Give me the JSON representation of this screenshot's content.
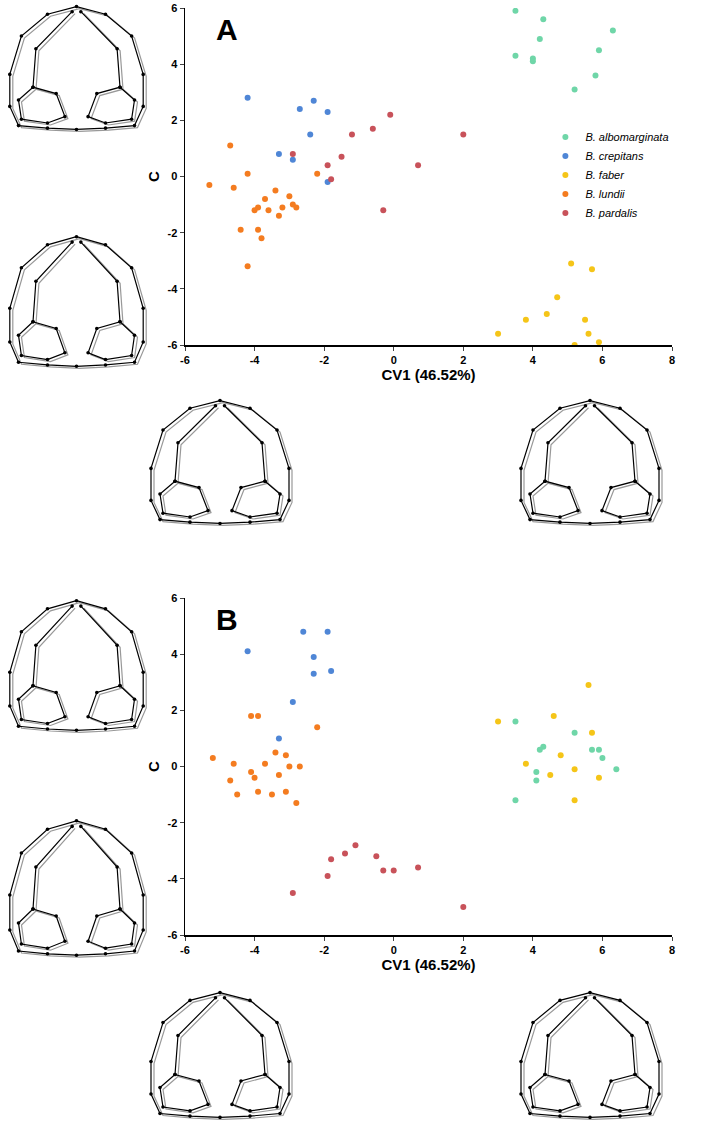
{
  "chart_data": [
    {
      "type": "scatter",
      "panel": "A",
      "x_label": "CV1 (46.52%)",
      "y_label": "C",
      "xlim": [
        -6,
        8
      ],
      "ylim": [
        -6,
        6
      ],
      "xticks": [
        -6,
        -4,
        -2,
        0,
        2,
        4,
        6,
        8
      ],
      "yticks": [
        -6,
        -4,
        -2,
        0,
        2,
        4,
        6
      ],
      "legend": "upper right",
      "series": [
        {
          "name": "B. albomarginata",
          "color": "#6fd6a8",
          "x": [
            3.5,
            4.3,
            6.3,
            4.2,
            5.9,
            3.5,
            4.0,
            4.0,
            5.8,
            5.2
          ],
          "y": [
            5.9,
            5.6,
            5.2,
            4.9,
            4.5,
            4.3,
            4.2,
            4.1,
            3.6,
            3.1
          ]
        },
        {
          "name": "B. crepitans",
          "color": "#4f86d6",
          "x": [
            -4.2,
            -2.3,
            -2.7,
            -1.9,
            -2.4,
            -3.3,
            -2.9,
            -1.9
          ],
          "y": [
            2.8,
            2.7,
            2.4,
            2.3,
            1.5,
            0.8,
            0.6,
            -0.2
          ]
        },
        {
          "name": "B. faber",
          "color": "#f5c518",
          "x": [
            5.1,
            5.7,
            4.7,
            4.4,
            5.5,
            3.8,
            5.6,
            3.0,
            5.9,
            5.2
          ],
          "y": [
            -3.1,
            -3.3,
            -4.3,
            -4.9,
            -5.1,
            -5.1,
            -5.6,
            -5.6,
            -5.9,
            -6.0
          ]
        },
        {
          "name": "B. lundii",
          "color": "#f47c20",
          "x": [
            -4.7,
            -4.2,
            -5.3,
            -4.6,
            -3.4,
            -2.2,
            -3.0,
            -3.7,
            -2.9,
            -2.8,
            -3.2,
            -3.9,
            -4.0,
            -3.6,
            -3.3,
            -4.4,
            -3.9,
            -3.8,
            -4.2
          ],
          "y": [
            1.1,
            0.1,
            -0.3,
            -0.4,
            -0.5,
            0.1,
            -0.7,
            -0.8,
            -1.0,
            -1.1,
            -1.1,
            -1.1,
            -1.2,
            -1.2,
            -1.4,
            -1.9,
            -1.9,
            -2.2,
            -3.2
          ]
        },
        {
          "name": "B. pardalis",
          "color": "#c8525a",
          "x": [
            -0.1,
            2.0,
            -0.6,
            -1.2,
            -1.5,
            -2.9,
            -1.9,
            0.7,
            -1.8,
            -0.3
          ],
          "y": [
            2.2,
            1.5,
            1.7,
            1.5,
            0.7,
            0.8,
            0.4,
            0.4,
            -0.1,
            -1.2
          ]
        }
      ]
    },
    {
      "type": "scatter",
      "panel": "B",
      "x_label": "CV1 (46.52%)",
      "y_label": "C",
      "xlim": [
        -6,
        8
      ],
      "ylim": [
        -6,
        6
      ],
      "xticks": [
        -6,
        -4,
        -2,
        0,
        2,
        4,
        6,
        8
      ],
      "yticks": [
        -6,
        -4,
        -2,
        0,
        2,
        4,
        6
      ],
      "series": [
        {
          "name": "B. albomarginata",
          "color": "#6fd6a8",
          "x": [
            3.5,
            5.2,
            4.3,
            4.2,
            5.9,
            5.7,
            6.0,
            6.4,
            4.1,
            4.1,
            3.5
          ],
          "y": [
            1.6,
            1.2,
            0.7,
            0.6,
            0.6,
            0.6,
            0.3,
            -0.1,
            -0.2,
            -0.5,
            -1.2
          ]
        },
        {
          "name": "B. crepitans",
          "color": "#4f86d6",
          "x": [
            -2.6,
            -1.9,
            -4.2,
            -2.3,
            -1.8,
            -2.3,
            -2.9,
            -3.3
          ],
          "y": [
            4.8,
            4.8,
            4.1,
            3.9,
            3.4,
            3.3,
            2.3,
            1.0
          ]
        },
        {
          "name": "B. faber",
          "color": "#f5c518",
          "x": [
            5.6,
            3.0,
            4.6,
            5.7,
            3.8,
            4.8,
            5.2,
            4.5,
            5.9,
            5.2
          ],
          "y": [
            2.9,
            1.6,
            1.8,
            1.2,
            0.1,
            0.4,
            -0.1,
            -0.3,
            -0.4,
            -1.2
          ]
        },
        {
          "name": "B. lundii",
          "color": "#f47c20",
          "x": [
            -4.1,
            -3.9,
            -2.2,
            -5.2,
            -3.4,
            -3.1,
            -4.6,
            -3.7,
            -3.0,
            -2.7,
            -4.1,
            -4.0,
            -3.3,
            -4.7,
            -3.1,
            -3.9,
            -4.5,
            -3.5,
            -2.8
          ],
          "y": [
            1.8,
            1.8,
            1.4,
            0.3,
            0.5,
            0.4,
            0.1,
            0.1,
            0.0,
            0.0,
            -0.2,
            -0.4,
            -0.3,
            -0.5,
            -0.9,
            -0.9,
            -1.0,
            -1.0,
            -1.3
          ]
        },
        {
          "name": "B. pardalis",
          "color": "#c8525a",
          "x": [
            -1.1,
            -1.4,
            -0.5,
            -1.8,
            -0.3,
            0.0,
            0.7,
            -1.9,
            -2.9,
            2.0
          ],
          "y": [
            -2.8,
            -3.1,
            -3.2,
            -3.3,
            -3.7,
            -3.7,
            -3.6,
            -3.9,
            -4.5,
            -5.0
          ]
        }
      ]
    }
  ]
}
